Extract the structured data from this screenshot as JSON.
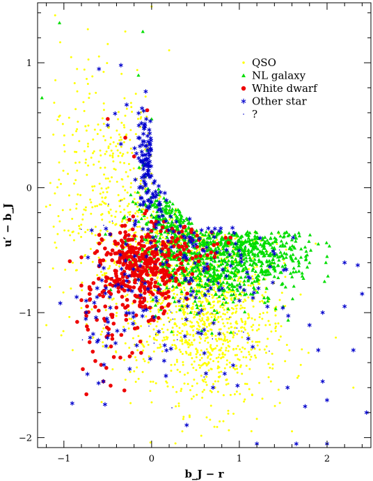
{
  "chart_data": {
    "type": "scatter",
    "xlabel": "b_J − r",
    "ylabel": "u′ − b_J",
    "xlim": [
      -1.3,
      2.5
    ],
    "ylim": [
      -2.08,
      1.48
    ],
    "x_ticks": [
      -1,
      0,
      1,
      2
    ],
    "y_ticks": [
      -2,
      -1,
      0,
      1
    ],
    "x_tick_labels": [
      "−1",
      "0",
      "1",
      "2"
    ],
    "y_tick_labels": [
      "−2",
      "−1",
      "0",
      "1"
    ],
    "legend_position": "top-right",
    "legend": [
      "QSO",
      "NL galaxy",
      "White dwarf",
      "Other star",
      "?"
    ],
    "grid": false,
    "series": [
      {
        "name": "QSO",
        "marker": "dot",
        "color": "#ffff00",
        "clusters": [
          {
            "center": [
              0.45,
              -0.75
            ],
            "spread": [
              0.45,
              0.38
            ],
            "count": 900
          },
          {
            "center": [
              0.75,
              -1.2
            ],
            "spread": [
              0.35,
              0.3
            ],
            "count": 450
          },
          {
            "center": [
              -0.35,
              -0.2
            ],
            "spread": [
              0.4,
              0.45
            ],
            "count": 300
          },
          {
            "center": [
              -0.55,
              0.4
            ],
            "spread": [
              0.35,
              0.35
            ],
            "count": 120
          }
        ],
        "points": [
          [
            -1.1,
            1.38
          ],
          [
            -0.6,
            1.05
          ],
          [
            -0.3,
            1.25
          ],
          [
            0.0,
            1.45
          ],
          [
            0.2,
            1.1
          ],
          [
            -0.85,
            0.95
          ],
          [
            -1.2,
            -1.1
          ],
          [
            -0.9,
            -1.3
          ],
          [
            1.6,
            -1.95
          ],
          [
            2.3,
            -1.6
          ],
          [
            1.2,
            -1.85
          ],
          [
            0.35,
            -1.95
          ],
          [
            2.1,
            -1.2
          ],
          [
            -0.5,
            1.15
          ]
        ]
      },
      {
        "name": "NL galaxy",
        "marker": "triangle",
        "color": "#00dd00",
        "clusters": [
          {
            "center": [
              0.65,
              -0.55
            ],
            "spread": [
              0.4,
              0.2
            ],
            "count": 650
          },
          {
            "center": [
              1.2,
              -0.5
            ],
            "spread": [
              0.35,
              0.15
            ],
            "count": 260
          },
          {
            "center": [
              0.25,
              -0.2
            ],
            "spread": [
              0.2,
              0.2
            ],
            "count": 220
          }
        ],
        "points": [
          [
            -1.05,
            1.32
          ],
          [
            -1.25,
            0.72
          ],
          [
            -0.1,
            1.25
          ],
          [
            -0.15,
            0.9
          ],
          [
            1.8,
            -0.6
          ],
          [
            2.0,
            -0.55
          ],
          [
            1.5,
            -0.95
          ],
          [
            1.9,
            -0.45
          ],
          [
            -0.05,
            0.3
          ],
          [
            0.0,
            0.55
          ]
        ]
      },
      {
        "name": "White dwarf",
        "marker": "filled-circle",
        "color": "#ee0000",
        "clusters": [
          {
            "center": [
              -0.1,
              -0.65
            ],
            "spread": [
              0.22,
              0.17
            ],
            "count": 360
          },
          {
            "center": [
              -0.45,
              -0.95
            ],
            "spread": [
              0.22,
              0.3
            ],
            "count": 80
          },
          {
            "center": [
              0.5,
              -0.45
            ],
            "spread": [
              0.2,
              0.08
            ],
            "count": 40
          }
        ],
        "points": [
          [
            -0.5,
            0.55
          ],
          [
            -0.05,
            0.62
          ],
          [
            -0.2,
            0.25
          ],
          [
            -0.3,
            0.4
          ],
          [
            -0.55,
            -1.55
          ],
          [
            -0.25,
            -1.35
          ],
          [
            -0.8,
            -0.9
          ],
          [
            -0.75,
            -1.0
          ],
          [
            0.9,
            -0.4
          ],
          [
            0.75,
            -0.45
          ]
        ]
      },
      {
        "name": "Other star",
        "marker": "star",
        "color": "#0000cc",
        "clusters": [
          {
            "center": [
              0.0,
              0.25
            ],
            "spread": [
              0.08,
              0.22
            ],
            "count": 110
          },
          {
            "center": [
              0.4,
              -0.55
            ],
            "spread": [
              0.55,
              0.4
            ],
            "count": 170
          },
          {
            "center": [
              -0.5,
              -1.0
            ],
            "spread": [
              0.25,
              0.3
            ],
            "count": 40
          }
        ],
        "points": [
          [
            -0.6,
            0.95
          ],
          [
            -0.35,
            0.98
          ],
          [
            0.7,
            -1.6
          ],
          [
            1.2,
            -2.05
          ],
          [
            1.65,
            -2.05
          ],
          [
            1.95,
            -1.55
          ],
          [
            2.0,
            -1.7
          ],
          [
            2.45,
            -1.8
          ],
          [
            2.2,
            -0.6
          ],
          [
            2.35,
            -0.62
          ],
          [
            2.3,
            -1.3
          ],
          [
            2.2,
            -0.95
          ],
          [
            1.95,
            -1.0
          ],
          [
            1.9,
            -1.3
          ],
          [
            1.8,
            -1.1
          ],
          [
            2.4,
            -0.85
          ],
          [
            1.55,
            -1.6
          ],
          [
            1.75,
            -1.75
          ],
          [
            2.0,
            -2.05
          ],
          [
            0.4,
            -1.9
          ],
          [
            -0.55,
            -1.55
          ],
          [
            -0.7,
            -1.2
          ],
          [
            -0.75,
            -1.05
          ],
          [
            -0.25,
            -1.45
          ],
          [
            -0.5,
            0.5
          ],
          [
            -0.35,
            0.35
          ],
          [
            -0.15,
            0.4
          ]
        ]
      },
      {
        "name": "?",
        "marker": "small-dot",
        "color": "#0000cc",
        "clusters": [
          {
            "center": [
              0.4,
              -0.6
            ],
            "spread": [
              0.5,
              0.35
            ],
            "count": 100
          }
        ],
        "points": []
      }
    ]
  }
}
